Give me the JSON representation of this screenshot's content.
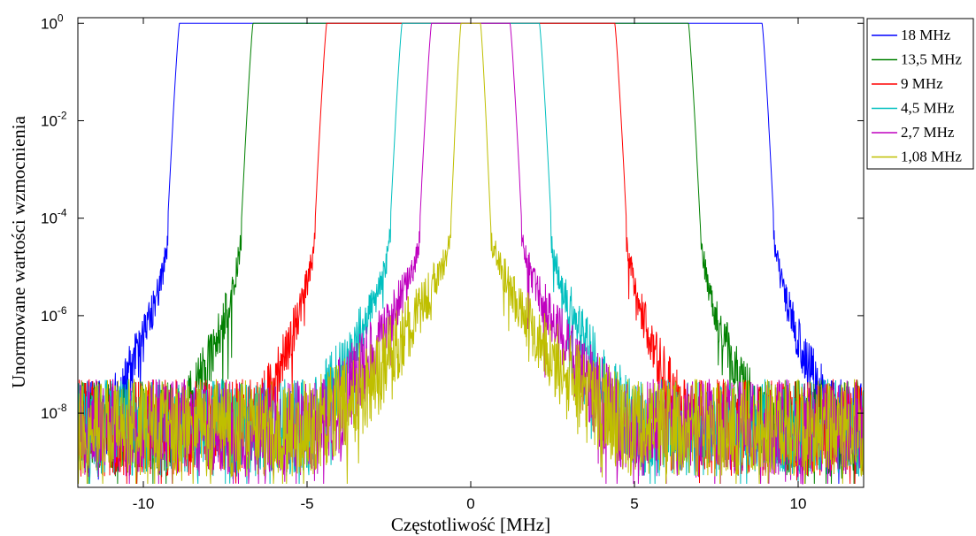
{
  "chart_data": {
    "type": "line",
    "xlabel": "Częstotliwość [MHz]",
    "ylabel": "Unormowane wartości wzmocnienia",
    "xlim": [
      -12,
      12
    ],
    "ylim": [
      3e-10,
      1.3
    ],
    "yscale": "log",
    "grid": false,
    "legend_position": "outside-top-right",
    "xticks": [
      -10,
      -5,
      0,
      5,
      10
    ],
    "xtick_labels": [
      "-10",
      "-5",
      "0",
      "5",
      "10"
    ],
    "yticks": [
      1e-08,
      1e-06,
      0.0001,
      0.01,
      1
    ],
    "ytick_labels": [
      {
        "base": "10",
        "exp": "-8"
      },
      {
        "base": "10",
        "exp": "-6"
      },
      {
        "base": "10",
        "exp": "-4"
      },
      {
        "base": "10",
        "exp": "-2"
      },
      {
        "base": "10",
        "exp": "0"
      }
    ],
    "series": [
      {
        "name": "18 MHz",
        "color": "#0000ff",
        "passband_edge_mhz": 8.9,
        "skirt_end_mhz": 9.25,
        "skirt_floor": 0.0001,
        "tail_decay": 1.75
      },
      {
        "name": "13,5 MHz",
        "color": "#008000",
        "passband_edge_mhz": 6.65,
        "skirt_end_mhz": 7.0,
        "skirt_floor": 0.0001,
        "tail_decay": 1.75
      },
      {
        "name": "9 MHz",
        "color": "#ff0000",
        "passband_edge_mhz": 4.4,
        "skirt_end_mhz": 4.75,
        "skirt_floor": 0.0001,
        "tail_decay": 1.75
      },
      {
        "name": "4,5 MHz",
        "color": "#00bfbf",
        "passband_edge_mhz": 2.1,
        "skirt_end_mhz": 2.45,
        "skirt_floor": 0.0001,
        "tail_decay": 1.4
      },
      {
        "name": "2,7 MHz",
        "color": "#bf00bf",
        "passband_edge_mhz": 1.2,
        "skirt_end_mhz": 1.55,
        "skirt_floor": 0.0001,
        "tail_decay": 1.2
      },
      {
        "name": "1,08 MHz",
        "color": "#bfbf00",
        "passband_edge_mhz": 0.3,
        "skirt_end_mhz": 0.6,
        "skirt_floor": 0.0001,
        "tail_decay": 1.0
      }
    ]
  }
}
